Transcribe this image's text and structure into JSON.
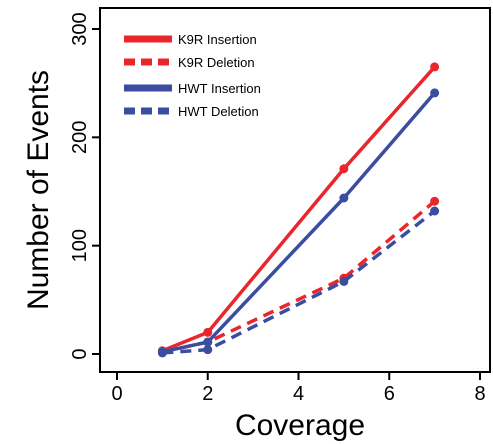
{
  "chart_data": {
    "type": "line",
    "xlabel": "Coverage",
    "ylabel": "Number of Events",
    "xlim": [
      0,
      8
    ],
    "ylim": [
      0,
      300
    ],
    "x_ticks": [
      "0",
      "2",
      "4",
      "6",
      "8"
    ],
    "y_ticks": [
      "0",
      "100",
      "200",
      "300"
    ],
    "grid": false,
    "legend_position": "top-left",
    "series": [
      {
        "name": "K9R Insertion",
        "color": "#e8262b",
        "dashed": false,
        "x": [
          1,
          2,
          5,
          7
        ],
        "y": [
          3,
          20,
          171,
          265
        ]
      },
      {
        "name": "K9R Deletion",
        "color": "#e8262b",
        "dashed": true,
        "x": [
          1,
          2,
          5,
          7
        ],
        "y": [
          2,
          11,
          70,
          141
        ]
      },
      {
        "name": "HWT Insertion",
        "color": "#3b4da0",
        "dashed": false,
        "x": [
          1,
          2,
          5,
          7
        ],
        "y": [
          2,
          11,
          144,
          241
        ]
      },
      {
        "name": "HWT Deletion",
        "color": "#3b4da0",
        "dashed": true,
        "x": [
          1,
          2,
          5,
          7
        ],
        "y": [
          1,
          4,
          67,
          132
        ]
      }
    ]
  }
}
